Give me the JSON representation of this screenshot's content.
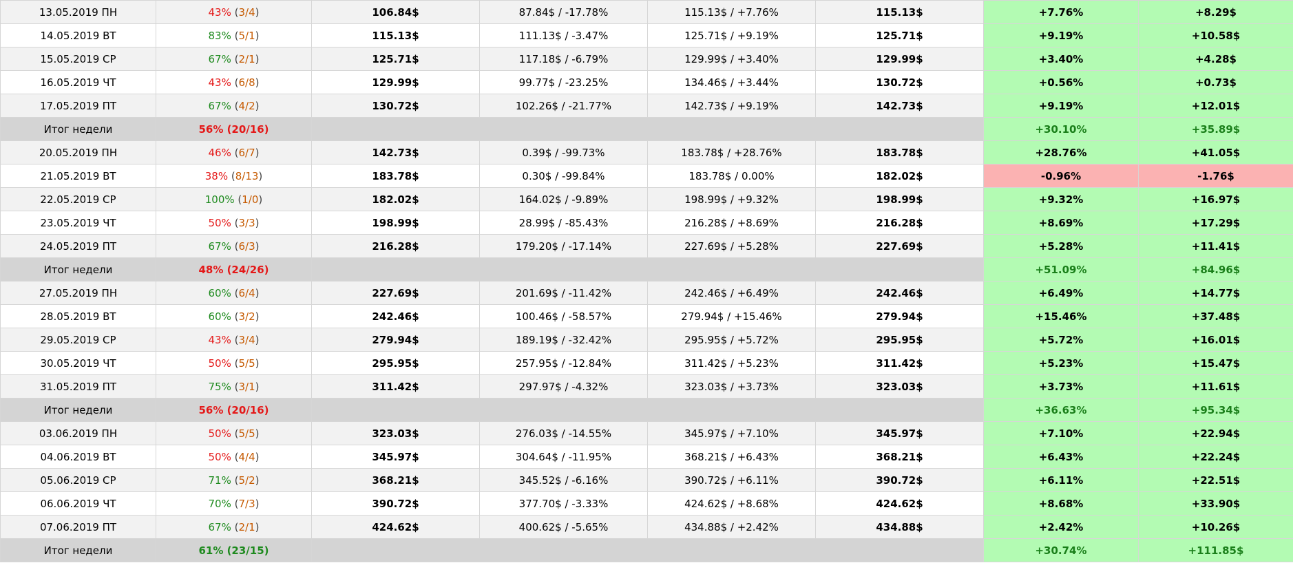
{
  "rows": [
    {
      "type": "day",
      "date": "13.05.2019 ПН",
      "rate": "43%",
      "wins": "3",
      "losses": "4",
      "rate_status": "bad",
      "open": "106.84$",
      "low": "87.84$ / -17.78%",
      "high": "115.13$ / +7.76%",
      "close": "115.13$",
      "pct": "+7.76%",
      "usd": "+8.29$",
      "result": "pos"
    },
    {
      "type": "day",
      "date": "14.05.2019 ВТ",
      "rate": "83%",
      "wins": "5",
      "losses": "1",
      "rate_status": "good",
      "open": "115.13$",
      "low": "111.13$ / -3.47%",
      "high": "125.71$ / +9.19%",
      "close": "125.71$",
      "pct": "+9.19%",
      "usd": "+10.58$",
      "result": "pos"
    },
    {
      "type": "day",
      "date": "15.05.2019 СР",
      "rate": "67%",
      "wins": "2",
      "losses": "1",
      "rate_status": "good",
      "open": "125.71$",
      "low": "117.18$ / -6.79%",
      "high": "129.99$ / +3.40%",
      "close": "129.99$",
      "pct": "+3.40%",
      "usd": "+4.28$",
      "result": "pos"
    },
    {
      "type": "day",
      "date": "16.05.2019 ЧТ",
      "rate": "43%",
      "wins": "6",
      "losses": "8",
      "rate_status": "bad",
      "open": "129.99$",
      "low": "99.77$ / -23.25%",
      "high": "134.46$ / +3.44%",
      "close": "130.72$",
      "pct": "+0.56%",
      "usd": "+0.73$",
      "result": "pos"
    },
    {
      "type": "day",
      "date": "17.05.2019 ПТ",
      "rate": "67%",
      "wins": "4",
      "losses": "2",
      "rate_status": "good",
      "open": "130.72$",
      "low": "102.26$ / -21.77%",
      "high": "142.73$ / +9.19%",
      "close": "142.73$",
      "pct": "+9.19%",
      "usd": "+12.01$",
      "result": "pos"
    },
    {
      "type": "summary",
      "label": "Итог недели",
      "rate_text": "56% (20/16)",
      "rate_status": "bad",
      "pct": "+30.10%",
      "usd": "+35.89$"
    },
    {
      "type": "day",
      "date": "20.05.2019 ПН",
      "rate": "46%",
      "wins": "6",
      "losses": "7",
      "rate_status": "bad",
      "open": "142.73$",
      "low": "0.39$ / -99.73%",
      "high": "183.78$ / +28.76%",
      "close": "183.78$",
      "pct": "+28.76%",
      "usd": "+41.05$",
      "result": "pos"
    },
    {
      "type": "day",
      "date": "21.05.2019 ВТ",
      "rate": "38%",
      "wins": "8",
      "losses": "13",
      "rate_status": "bad",
      "open": "183.78$",
      "low": "0.30$ / -99.84%",
      "high": "183.78$ / 0.00%",
      "close": "182.02$",
      "pct": "-0.96%",
      "usd": "-1.76$",
      "result": "neg"
    },
    {
      "type": "day",
      "date": "22.05.2019 СР",
      "rate": "100%",
      "wins": "1",
      "losses": "0",
      "rate_status": "good",
      "open": "182.02$",
      "low": "164.02$ / -9.89%",
      "high": "198.99$ / +9.32%",
      "close": "198.99$",
      "pct": "+9.32%",
      "usd": "+16.97$",
      "result": "pos"
    },
    {
      "type": "day",
      "date": "23.05.2019 ЧТ",
      "rate": "50%",
      "wins": "3",
      "losses": "3",
      "rate_status": "bad",
      "open": "198.99$",
      "low": "28.99$ / -85.43%",
      "high": "216.28$ / +8.69%",
      "close": "216.28$",
      "pct": "+8.69%",
      "usd": "+17.29$",
      "result": "pos"
    },
    {
      "type": "day",
      "date": "24.05.2019 ПТ",
      "rate": "67%",
      "wins": "6",
      "losses": "3",
      "rate_status": "good",
      "open": "216.28$",
      "low": "179.20$ / -17.14%",
      "high": "227.69$ / +5.28%",
      "close": "227.69$",
      "pct": "+5.28%",
      "usd": "+11.41$",
      "result": "pos"
    },
    {
      "type": "summary",
      "label": "Итог недели",
      "rate_text": "48% (24/26)",
      "rate_status": "bad",
      "pct": "+51.09%",
      "usd": "+84.96$"
    },
    {
      "type": "day",
      "date": "27.05.2019 ПН",
      "rate": "60%",
      "wins": "6",
      "losses": "4",
      "rate_status": "good",
      "open": "227.69$",
      "low": "201.69$ / -11.42%",
      "high": "242.46$ / +6.49%",
      "close": "242.46$",
      "pct": "+6.49%",
      "usd": "+14.77$",
      "result": "pos"
    },
    {
      "type": "day",
      "date": "28.05.2019 ВТ",
      "rate": "60%",
      "wins": "3",
      "losses": "2",
      "rate_status": "good",
      "open": "242.46$",
      "low": "100.46$ / -58.57%",
      "high": "279.94$ / +15.46%",
      "close": "279.94$",
      "pct": "+15.46%",
      "usd": "+37.48$",
      "result": "pos"
    },
    {
      "type": "day",
      "date": "29.05.2019 СР",
      "rate": "43%",
      "wins": "3",
      "losses": "4",
      "rate_status": "bad",
      "open": "279.94$",
      "low": "189.19$ / -32.42%",
      "high": "295.95$ / +5.72%",
      "close": "295.95$",
      "pct": "+5.72%",
      "usd": "+16.01$",
      "result": "pos"
    },
    {
      "type": "day",
      "date": "30.05.2019 ЧТ",
      "rate": "50%",
      "wins": "5",
      "losses": "5",
      "rate_status": "bad",
      "open": "295.95$",
      "low": "257.95$ / -12.84%",
      "high": "311.42$ / +5.23%",
      "close": "311.42$",
      "pct": "+5.23%",
      "usd": "+15.47$",
      "result": "pos"
    },
    {
      "type": "day",
      "date": "31.05.2019 ПТ",
      "rate": "75%",
      "wins": "3",
      "losses": "1",
      "rate_status": "good",
      "open": "311.42$",
      "low": "297.97$ / -4.32%",
      "high": "323.03$ / +3.73%",
      "close": "323.03$",
      "pct": "+3.73%",
      "usd": "+11.61$",
      "result": "pos"
    },
    {
      "type": "summary",
      "label": "Итог недели",
      "rate_text": "56% (20/16)",
      "rate_status": "bad",
      "pct": "+36.63%",
      "usd": "+95.34$"
    },
    {
      "type": "day",
      "date": "03.06.2019 ПН",
      "rate": "50%",
      "wins": "5",
      "losses": "5",
      "rate_status": "bad",
      "open": "323.03$",
      "low": "276.03$ / -14.55%",
      "high": "345.97$ / +7.10%",
      "close": "345.97$",
      "pct": "+7.10%",
      "usd": "+22.94$",
      "result": "pos"
    },
    {
      "type": "day",
      "date": "04.06.2019 ВТ",
      "rate": "50%",
      "wins": "4",
      "losses": "4",
      "rate_status": "bad",
      "open": "345.97$",
      "low": "304.64$ / -11.95%",
      "high": "368.21$ / +6.43%",
      "close": "368.21$",
      "pct": "+6.43%",
      "usd": "+22.24$",
      "result": "pos"
    },
    {
      "type": "day",
      "date": "05.06.2019 СР",
      "rate": "71%",
      "wins": "5",
      "losses": "2",
      "rate_status": "good",
      "open": "368.21$",
      "low": "345.52$ / -6.16%",
      "high": "390.72$ / +6.11%",
      "close": "390.72$",
      "pct": "+6.11%",
      "usd": "+22.51$",
      "result": "pos"
    },
    {
      "type": "day",
      "date": "06.06.2019 ЧТ",
      "rate": "70%",
      "wins": "7",
      "losses": "3",
      "rate_status": "good",
      "open": "390.72$",
      "low": "377.70$ / -3.33%",
      "high": "424.62$ / +8.68%",
      "close": "424.62$",
      "pct": "+8.68%",
      "usd": "+33.90$",
      "result": "pos"
    },
    {
      "type": "day",
      "date": "07.06.2019 ПТ",
      "rate": "67%",
      "wins": "2",
      "losses": "1",
      "rate_status": "good",
      "open": "424.62$",
      "low": "400.62$ / -5.65%",
      "high": "434.88$ / +2.42%",
      "close": "434.88$",
      "pct": "+2.42%",
      "usd": "+10.26$",
      "result": "pos"
    },
    {
      "type": "summary",
      "label": "Итог недели",
      "rate_text": "61% (23/15)",
      "rate_status": "good",
      "pct": "+30.74%",
      "usd": "+111.85$"
    }
  ]
}
